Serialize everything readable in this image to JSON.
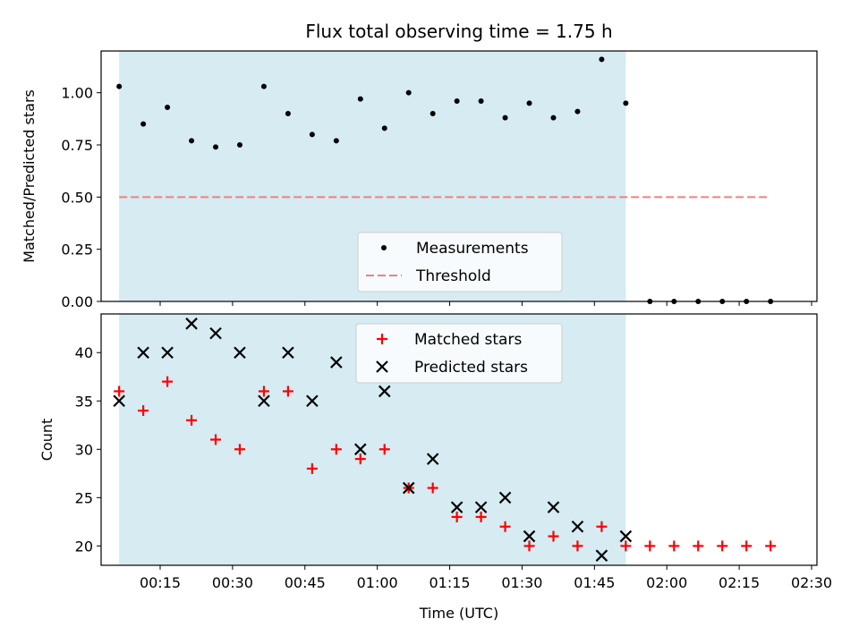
{
  "chart_data": {
    "title": "Flux total observing time = 1.75 h",
    "xlabel": "Time (UTC)",
    "x_unit": "minutes after 00:00 UTC",
    "xlim": [
      0,
      150
    ],
    "xticks": [
      {
        "value": 15,
        "label": "00:15"
      },
      {
        "value": 30,
        "label": "00:30"
      },
      {
        "value": 45,
        "label": "00:45"
      },
      {
        "value": 60,
        "label": "01:00"
      },
      {
        "value": 75,
        "label": "01:15"
      },
      {
        "value": 90,
        "label": "01:30"
      },
      {
        "value": 105,
        "label": "01:45"
      },
      {
        "value": 120,
        "label": "02:00"
      },
      {
        "value": 135,
        "label": "02:15"
      },
      {
        "value": 150,
        "label": "02:30"
      }
    ],
    "shaded_span": {
      "x_start": 6.5,
      "x_end": 111.5,
      "color": "#add8e6",
      "alpha": 0.5
    },
    "panels": [
      {
        "type": "scatter",
        "ylabel": "Matched/Predicted stars",
        "ylim": [
          0,
          1.2
        ],
        "yticks": [
          {
            "value": 0.0,
            "label": "0.00"
          },
          {
            "value": 0.25,
            "label": "0.25"
          },
          {
            "value": 0.5,
            "label": "0.50"
          },
          {
            "value": 0.75,
            "label": "0.75"
          },
          {
            "value": 1.0,
            "label": "1.00"
          }
        ],
        "legend_position": "lower-center",
        "threshold": {
          "name": "Threshold",
          "value": 0.5,
          "x_start": 6.5,
          "x_end": 141.5,
          "color": "#f08080",
          "style": "dashed"
        },
        "series": [
          {
            "name": "Measurements",
            "marker": "dot",
            "color": "#000000",
            "x": [
              6.5,
              11.5,
              16.5,
              21.5,
              26.5,
              31.5,
              36.5,
              41.5,
              46.5,
              51.5,
              56.5,
              61.5,
              66.5,
              71.5,
              76.5,
              81.5,
              86.5,
              91.5,
              96.5,
              101.5,
              106.5,
              111.5,
              116.5,
              121.5,
              126.5,
              131.5,
              136.5,
              141.5
            ],
            "y": [
              1.03,
              0.85,
              0.93,
              0.77,
              0.74,
              0.75,
              1.03,
              0.9,
              0.8,
              0.77,
              0.97,
              0.83,
              1.0,
              0.9,
              0.96,
              0.96,
              0.88,
              0.95,
              0.88,
              0.91,
              1.16,
              0.95,
              0.0,
              0.0,
              0.0,
              0.0,
              0.0,
              0.0
            ]
          }
        ]
      },
      {
        "type": "scatter",
        "ylabel": "Count",
        "ylim": [
          18,
          44
        ],
        "yticks": [
          {
            "value": 20,
            "label": "20"
          },
          {
            "value": 25,
            "label": "25"
          },
          {
            "value": 30,
            "label": "30"
          },
          {
            "value": 35,
            "label": "35"
          },
          {
            "value": 40,
            "label": "40"
          }
        ],
        "legend_position": "upper-center",
        "series": [
          {
            "name": "Matched stars",
            "marker": "plus",
            "color": "#ff0000",
            "x": [
              6.5,
              11.5,
              16.5,
              21.5,
              26.5,
              31.5,
              36.5,
              41.5,
              46.5,
              51.5,
              56.5,
              61.5,
              66.5,
              71.5,
              76.5,
              81.5,
              86.5,
              91.5,
              96.5,
              101.5,
              106.5,
              111.5,
              116.5,
              121.5,
              126.5,
              131.5,
              136.5,
              141.5
            ],
            "y": [
              36,
              34,
              37,
              33,
              31,
              30,
              36,
              36,
              28,
              30,
              29,
              30,
              26,
              26,
              23,
              23,
              22,
              20,
              21,
              20,
              22,
              20,
              20,
              20,
              20,
              20,
              20,
              20
            ]
          },
          {
            "name": "Predicted stars",
            "marker": "x",
            "color": "#000000",
            "x": [
              6.5,
              11.5,
              16.5,
              21.5,
              26.5,
              31.5,
              36.5,
              41.5,
              46.5,
              51.5,
              56.5,
              61.5,
              66.5,
              71.5,
              76.5,
              81.5,
              86.5,
              91.5,
              96.5,
              101.5,
              106.5,
              111.5
            ],
            "y": [
              35,
              40,
              40,
              43,
              42,
              40,
              35,
              40,
              35,
              39,
              30,
              36,
              26,
              29,
              24,
              24,
              25,
              21,
              24,
              22,
              19,
              21
            ]
          }
        ]
      }
    ]
  }
}
